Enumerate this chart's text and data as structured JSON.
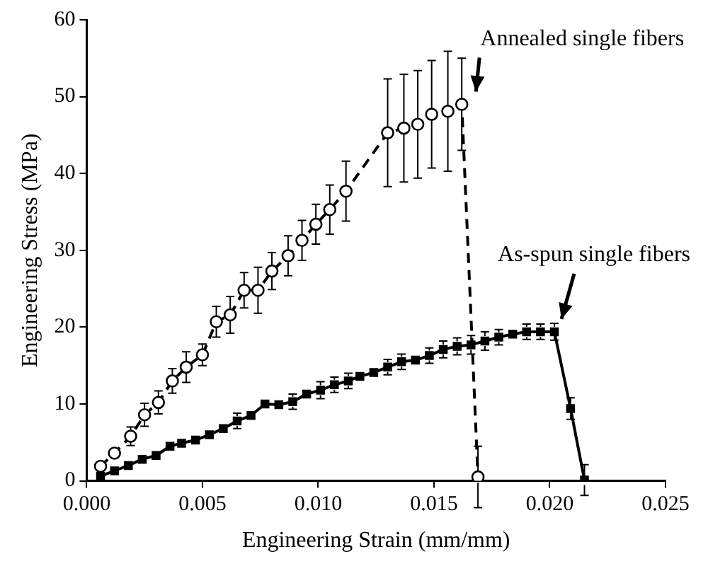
{
  "chart_data": {
    "type": "line",
    "xlabel": "Engineering Strain (mm/mm)",
    "ylabel": "Engineering Stress (MPa)",
    "xlim": [
      0,
      0.025
    ],
    "xticks": [
      {
        "value": 0,
        "label": "0.000"
      },
      {
        "value": 0.005,
        "label": "0.005"
      },
      {
        "value": 0.01,
        "label": "0.010"
      },
      {
        "value": 0.015,
        "label": "0.015"
      },
      {
        "value": 0.02,
        "label": "0.020"
      },
      {
        "value": 0.025,
        "label": "0.025"
      }
    ],
    "ylim": [
      0,
      60
    ],
    "yticks": [
      0,
      10,
      20,
      30,
      40,
      50,
      60
    ],
    "grid": false,
    "legend": false,
    "series": [
      {
        "color": "#000000",
        "marker": "circle",
        "line_style": "dashed",
        "x": [
          0.0006,
          0.0012,
          0.0019,
          0.0025,
          0.0031,
          0.0037,
          0.0043,
          0.005,
          0.0056,
          0.0062,
          0.0068,
          0.0074,
          0.008,
          0.0087,
          0.0093,
          0.0099,
          0.0105,
          0.0112,
          0.013,
          0.0137,
          0.0143,
          0.0149,
          0.0156,
          0.0162,
          0.0169
        ],
        "values": [
          1.9,
          3.6,
          5.8,
          8.6,
          10.2,
          13.0,
          14.8,
          16.4,
          20.7,
          21.6,
          24.8,
          24.8,
          27.3,
          29.3,
          31.3,
          33.4,
          35.3,
          37.7,
          45.3,
          45.9,
          46.4,
          47.7,
          48.1,
          49.0,
          0.5
        ],
        "errors": [
          null,
          null,
          1.2,
          1.5,
          1.5,
          1.6,
          2.0,
          1.4,
          2.0,
          2.4,
          2.3,
          3.0,
          2.4,
          2.6,
          2.6,
          2.6,
          3.2,
          3.9,
          7.0,
          7.0,
          7.0,
          7.0,
          7.8,
          6.0,
          4.0
        ]
      },
      {
        "color": "#000000",
        "marker": "square",
        "line_style": "solid",
        "x": [
          0.0006,
          0.0012,
          0.0018,
          0.0024,
          0.003,
          0.0036,
          0.0041,
          0.0047,
          0.0053,
          0.0059,
          0.0065,
          0.0071,
          0.0077,
          0.0083,
          0.0089,
          0.0095,
          0.0101,
          0.0107,
          0.0113,
          0.0118,
          0.0124,
          0.013,
          0.0136,
          0.0142,
          0.0148,
          0.0154,
          0.016,
          0.0166,
          0.0172,
          0.0178,
          0.0184,
          0.019,
          0.0196,
          0.0202,
          0.0209,
          0.0215
        ],
        "values": [
          0.6,
          1.3,
          2.0,
          2.8,
          3.3,
          4.5,
          4.9,
          5.3,
          6.0,
          6.8,
          7.8,
          8.5,
          10.0,
          9.9,
          10.3,
          11.3,
          11.8,
          12.5,
          13.0,
          13.6,
          14.1,
          14.8,
          15.5,
          15.7,
          16.3,
          17.1,
          17.5,
          17.7,
          18.2,
          18.7,
          19.1,
          19.4,
          19.4,
          19.4,
          9.4,
          0.1
        ],
        "errors": [
          null,
          null,
          null,
          null,
          null,
          null,
          null,
          null,
          null,
          null,
          1.0,
          null,
          null,
          null,
          1.0,
          null,
          1.1,
          1.0,
          1.0,
          null,
          null,
          1.0,
          1.0,
          null,
          1.0,
          1.1,
          1.1,
          1.2,
          1.2,
          1.0,
          null,
          1.0,
          1.0,
          1.1,
          1.4,
          2.0
        ]
      }
    ],
    "annotations": [
      {
        "text": "Annealed single fibers",
        "x": 0.0162,
        "y": 49.0
      },
      {
        "text": "As-spun single fibers",
        "x": 0.0202,
        "y": 19.4
      }
    ]
  }
}
